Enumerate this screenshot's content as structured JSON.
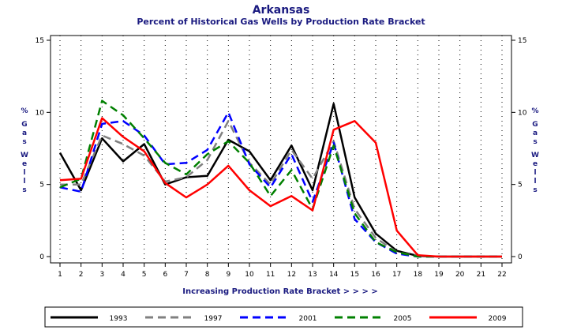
{
  "chart_data": {
    "type": "line",
    "title": "Arkansas",
    "subtitle": "Percent of Historical Gas Wells by Production Rate Bracket",
    "xlabel": "Increasing Production Rate Bracket > > > >",
    "ylabel_left": "% Gas Wells",
    "ylabel_right": "% Gas Wells",
    "ylim": [
      0,
      15
    ],
    "yticks": [
      "0",
      "5",
      "10",
      "15"
    ],
    "categories": [
      "1",
      "2",
      "3",
      "4",
      "5",
      "6",
      "7",
      "8",
      "9",
      "10",
      "11",
      "12",
      "13",
      "14",
      "15",
      "16",
      "17",
      "18",
      "19",
      "20",
      "21",
      "22"
    ],
    "grid": true,
    "legend_position": "bottom",
    "series": [
      {
        "name": "1993",
        "color": "#000000",
        "dash": "solid",
        "values": [
          7.2,
          4.6,
          8.2,
          6.6,
          7.8,
          5.0,
          5.5,
          5.6,
          8.1,
          7.3,
          5.3,
          7.7,
          4.6,
          10.6,
          4.1,
          1.6,
          0.4,
          0.05,
          0.0,
          0.0,
          0.0,
          0.0
        ]
      },
      {
        "name": "1997",
        "color": "#808080",
        "dash": "dash",
        "values": [
          5.0,
          5.0,
          8.4,
          7.8,
          7.0,
          5.2,
          5.5,
          6.7,
          9.4,
          6.5,
          5.0,
          7.4,
          5.4,
          8.0,
          3.3,
          1.3,
          0.3,
          0.05,
          0.0,
          0.0,
          0.0,
          0.0
        ]
      },
      {
        "name": "2001",
        "color": "#0000ff",
        "dash": "dash",
        "values": [
          4.8,
          4.5,
          9.2,
          9.4,
          8.4,
          6.4,
          6.5,
          7.4,
          10.0,
          6.4,
          4.8,
          7.1,
          3.8,
          7.9,
          2.6,
          1.0,
          0.2,
          0.0,
          0.0,
          0.0,
          0.0,
          0.0
        ]
      },
      {
        "name": "2005",
        "color": "#008000",
        "dash": "dash",
        "values": [
          4.8,
          5.4,
          10.8,
          9.8,
          8.2,
          6.5,
          5.7,
          7.1,
          8.0,
          6.5,
          4.2,
          6.0,
          3.3,
          7.7,
          3.0,
          1.0,
          0.3,
          0.0,
          0.0,
          0.0,
          0.0,
          0.0
        ]
      },
      {
        "name": "2009",
        "color": "#ff0000",
        "dash": "solid",
        "values": [
          5.3,
          5.4,
          9.6,
          8.3,
          7.3,
          5.1,
          4.1,
          5.0,
          6.3,
          4.6,
          3.5,
          4.2,
          3.2,
          8.8,
          9.4,
          7.9,
          1.8,
          0.1,
          0.0,
          0.0,
          0.0,
          0.0
        ]
      }
    ]
  }
}
